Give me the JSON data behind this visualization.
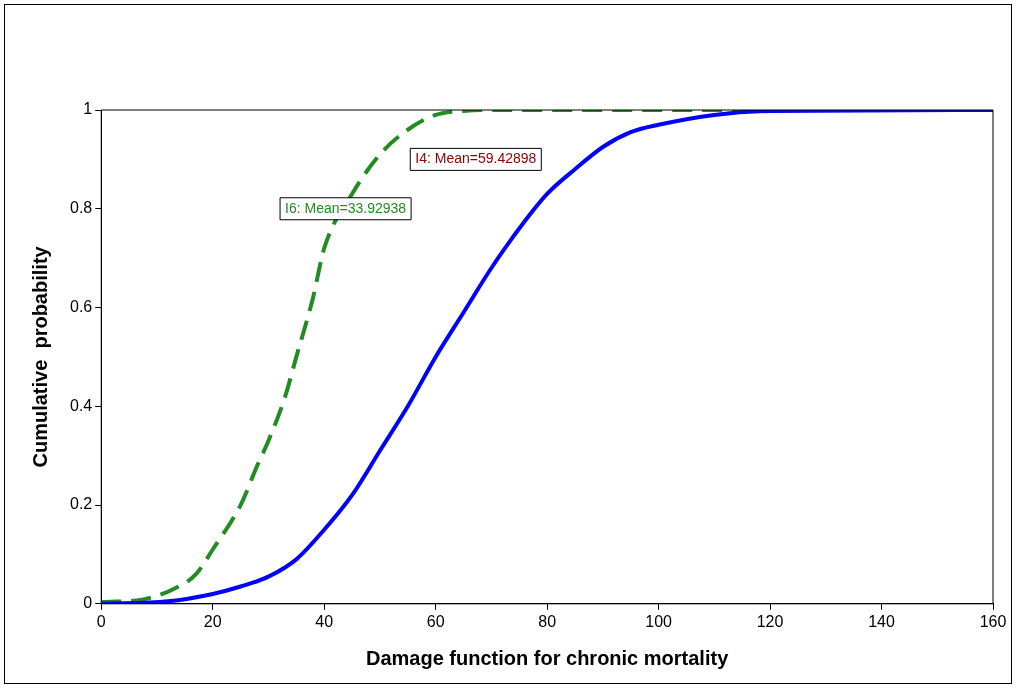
{
  "chart_data": {
    "type": "line",
    "xlabel": "Damage function for chronic mortality",
    "ylabel": "Cumulative  probability",
    "xlim": [
      0,
      160
    ],
    "xticks": [
      0,
      20,
      40,
      60,
      80,
      100,
      120,
      140,
      160
    ],
    "ylim": [
      0,
      1
    ],
    "yticks": [
      0,
      0.2,
      0.4,
      0.6,
      0.8,
      1
    ],
    "grid": false,
    "legend": false,
    "marker": "none",
    "series": [
      {
        "color": "#0000ff",
        "line_style": "solid",
        "x": [
          0,
          12,
          20,
          25,
          30,
          35,
          40,
          45,
          50,
          55,
          60,
          65,
          70,
          75,
          80,
          85,
          90,
          95,
          100,
          110,
          120,
          160
        ],
        "values": [
          0,
          0.005,
          0.02,
          0.035,
          0.055,
          0.09,
          0.15,
          0.22,
          0.31,
          0.4,
          0.5,
          0.59,
          0.68,
          0.76,
          0.83,
          0.88,
          0.925,
          0.955,
          0.97,
          0.99,
          0.998,
          1
        ]
      },
      {
        "color": "#228b22",
        "line_style": "dashed",
        "x": [
          0,
          8,
          13,
          17,
          20,
          25,
          28,
          30,
          33,
          35,
          38,
          40,
          45,
          50,
          55,
          60,
          65,
          70,
          160
        ],
        "values": [
          0.003,
          0.01,
          0.03,
          0.06,
          0.11,
          0.2,
          0.28,
          0.33,
          0.42,
          0.5,
          0.62,
          0.72,
          0.83,
          0.91,
          0.96,
          0.99,
          0.998,
          1,
          1
        ]
      }
    ],
    "annotations": [
      "I4: Mean=59.42898",
      "I6: Mean=33.92938"
    ]
  }
}
